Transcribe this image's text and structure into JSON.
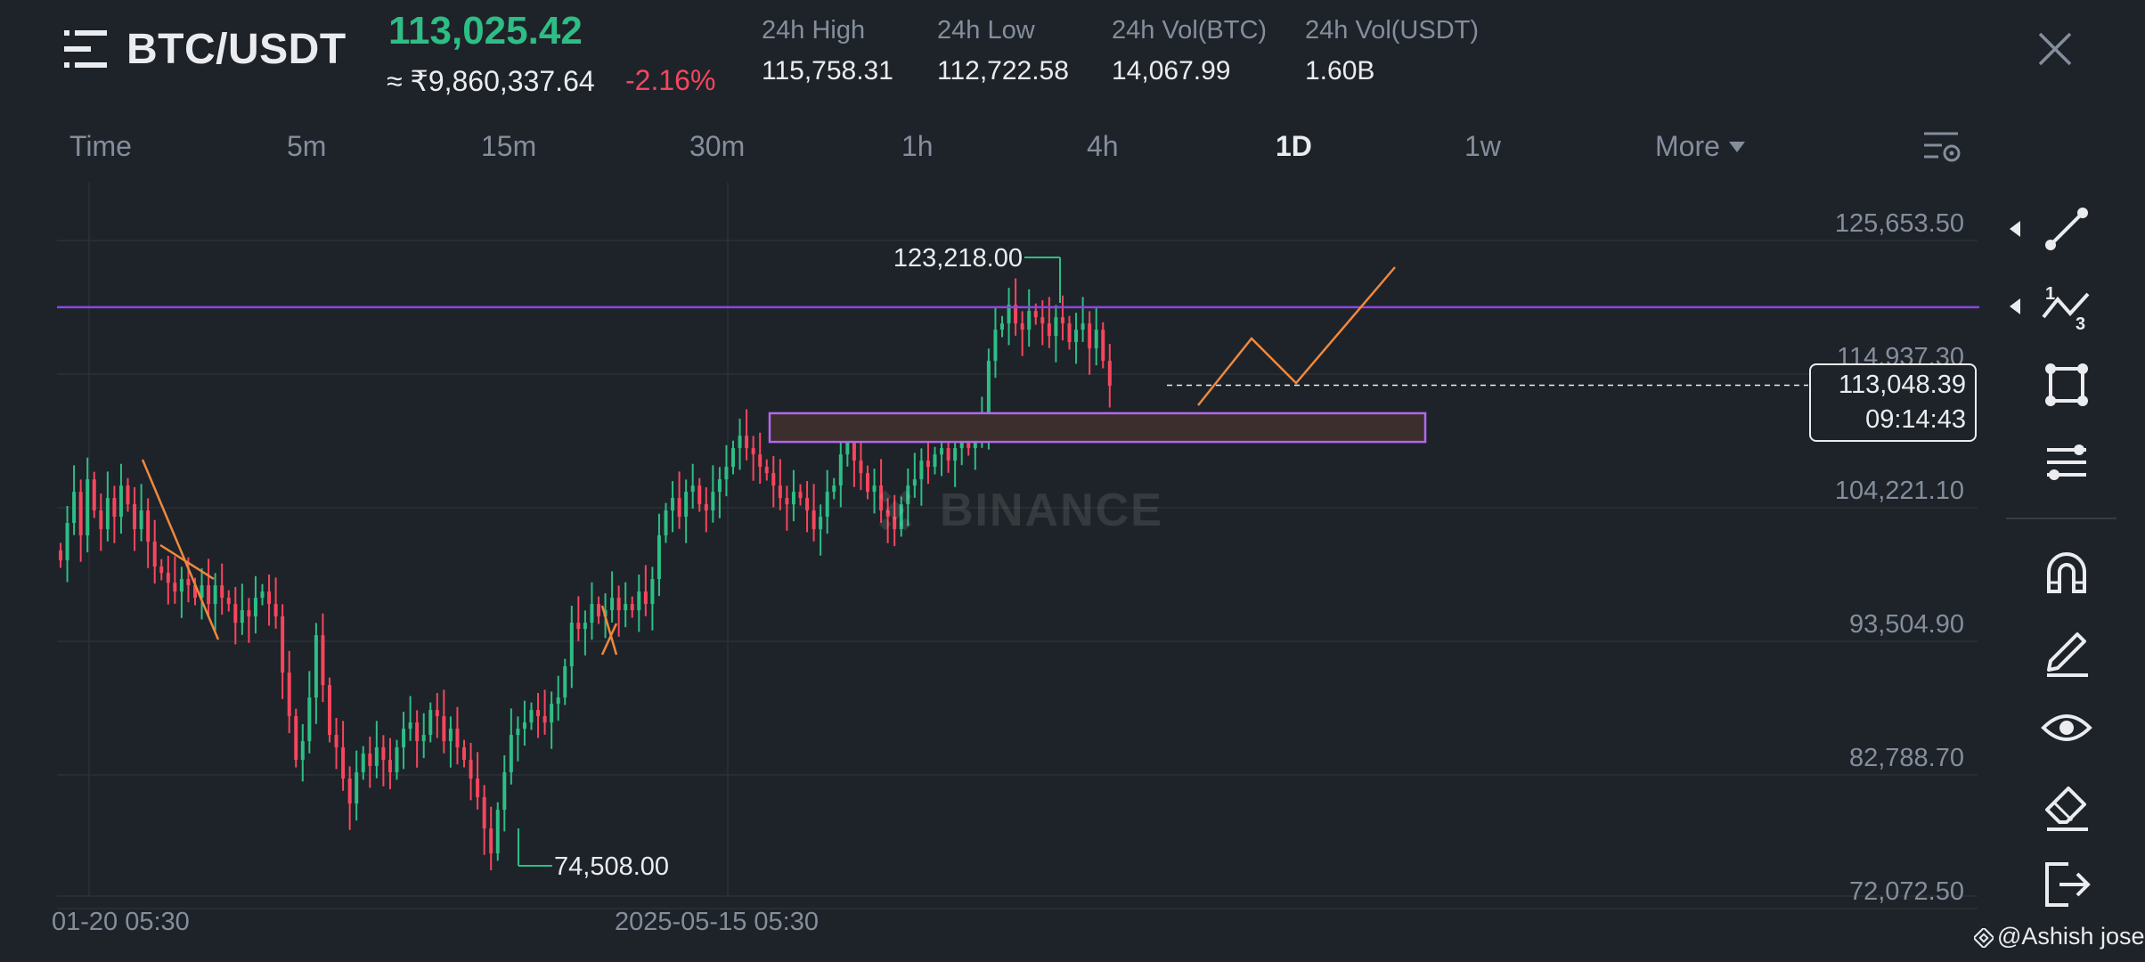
{
  "header": {
    "pair": "BTC/USDT",
    "last_price": "113,025.42",
    "inr_price": "≈ ₹9,860,337.64",
    "change_pct": "-2.16%",
    "stats": [
      {
        "label": "24h High",
        "value": "115,758.31"
      },
      {
        "label": "24h Low",
        "value": "112,722.58"
      },
      {
        "label": "24h Vol(BTC)",
        "value": "14,067.99"
      },
      {
        "label": "24h Vol(USDT)",
        "value": "1.60B"
      }
    ],
    "icons": {
      "menu": "menu-icon",
      "close": "close-icon"
    }
  },
  "intervals": {
    "items": [
      "Time",
      "5m",
      "15m",
      "30m",
      "1h",
      "4h",
      "1D",
      "1w"
    ],
    "active": "1D",
    "more_label": "More"
  },
  "chart": {
    "watermark": "BINANCE",
    "y_ticks": [
      "125,653.50",
      "114,937.30",
      "104,221.10",
      "93,504.90",
      "82,788.70",
      "72,072.50"
    ],
    "x_ticks": [
      "01-20 05:30",
      "2025-05-15 05:30"
    ],
    "annotations": {
      "high": "123,218.00",
      "low": "74,508.00"
    },
    "current_price": "113,048.39",
    "countdown": "09:14:43",
    "colors": {
      "up": "#2ebd85",
      "down": "#f6465d",
      "hline": "#8e44e8",
      "trendline": "#f0883e",
      "zone_border": "#b367f0",
      "zone_fill": "#3b2e2c"
    }
  },
  "chart_data": {
    "type": "candlestick",
    "ylim": [
      71000,
      126500
    ],
    "y_ticks": [
      125653.5,
      114937.3,
      104221.1,
      93504.9,
      82788.7,
      72072.5
    ],
    "x_ticks": [
      "01-20 05:30",
      "2025-05-15 05:30"
    ],
    "annotated_high": 123218.0,
    "annotated_low": 74508.0,
    "current_price": 113048.39,
    "horizontal_line": 119300,
    "zone": [
      108500,
      110800
    ],
    "closes": [
      99000,
      102000,
      104500,
      101000,
      105500,
      103000,
      101500,
      104000,
      102500,
      105000,
      103500,
      101500,
      103000,
      100500,
      98500,
      98000,
      97200,
      96500,
      97500,
      97000,
      96000,
      97000,
      95500,
      97000,
      96000,
      95500,
      94000,
      95000,
      94500,
      96000,
      96500,
      95500,
      94500,
      90000,
      86500,
      83000,
      84500,
      88000,
      93000,
      89000,
      85000,
      84000,
      81500,
      79500,
      82000,
      83500,
      82500,
      84000,
      83000,
      82000,
      84000,
      85500,
      86000,
      84500,
      85000,
      87000,
      86500,
      84500,
      85500,
      84000,
      83000,
      81500,
      80000,
      77500,
      75500,
      79000,
      82000,
      85000,
      85500,
      86000,
      87000,
      86500,
      86000,
      87500,
      88000,
      90500,
      94000,
      93500,
      94000,
      95500,
      94500,
      95000,
      96000,
      95000,
      95500,
      95000,
      96500,
      95500,
      97500,
      101000,
      103000,
      104000,
      102500,
      104500,
      105000,
      103500,
      103000,
      104500,
      105500,
      106500,
      108000,
      109000,
      108000,
      107500,
      106500,
      106000,
      105000,
      104000,
      103500,
      104500,
      104000,
      103000,
      101500,
      102500,
      104500,
      105000,
      107500,
      108500,
      107000,
      106000,
      104500,
      105000,
      103000,
      102500,
      101500,
      103500,
      105000,
      105500,
      107000,
      106500,
      107500,
      108000,
      107000,
      108000,
      109000,
      108000,
      109000,
      110000,
      115000,
      117500,
      118000,
      119500,
      118000,
      117500,
      119000,
      118500,
      118000,
      117000,
      118500,
      118000,
      116500,
      117500,
      118000,
      116000,
      117500,
      115000,
      113000
    ]
  },
  "toolbar": {
    "tools": [
      "trend-line-icon",
      "fibonacci-icon",
      "shape-icon",
      "multi-line-icon",
      "magnet-icon",
      "pencil-icon",
      "eye-icon",
      "eraser-icon",
      "exit-icon"
    ]
  },
  "credit": "@Ashish jose"
}
